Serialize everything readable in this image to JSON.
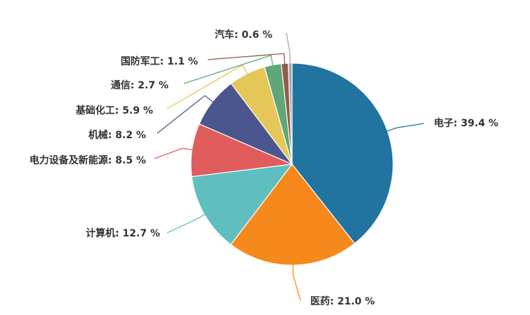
{
  "chart_data": {
    "type": "pie",
    "title": "",
    "start_angle_deg": 0,
    "direction": "clockwise",
    "slices": [
      {
        "label": "电子",
        "value": 39.4,
        "display": "电子: 39.4 %",
        "color": "#21749f"
      },
      {
        "label": "医药",
        "value": 21.0,
        "display": "医药: 21.0 %",
        "color": "#f5891b"
      },
      {
        "label": "计算机",
        "value": 12.7,
        "display": "计算机: 12.7 %",
        "color": "#5fbfbe"
      },
      {
        "label": "电力设备及新能源",
        "value": 8.5,
        "display": "电力设备及新能源: 8.5 %",
        "color": "#e05c5d"
      },
      {
        "label": "机械",
        "value": 8.2,
        "display": "机械: 8.2 %",
        "color": "#4b568e"
      },
      {
        "label": "基础化工",
        "value": 5.9,
        "display": "基础化工: 5.9 %",
        "color": "#e5c659"
      },
      {
        "label": "通信",
        "value": 2.7,
        "display": "通信: 2.7 %",
        "color": "#5ea776"
      },
      {
        "label": "国防军工",
        "value": 1.1,
        "display": "国防军工: 1.1 %",
        "color": "#8f5e4b"
      },
      {
        "label": "汽车",
        "value": 0.6,
        "display": "汽车: 0.6 %",
        "color": "#a7a7a7"
      }
    ]
  }
}
